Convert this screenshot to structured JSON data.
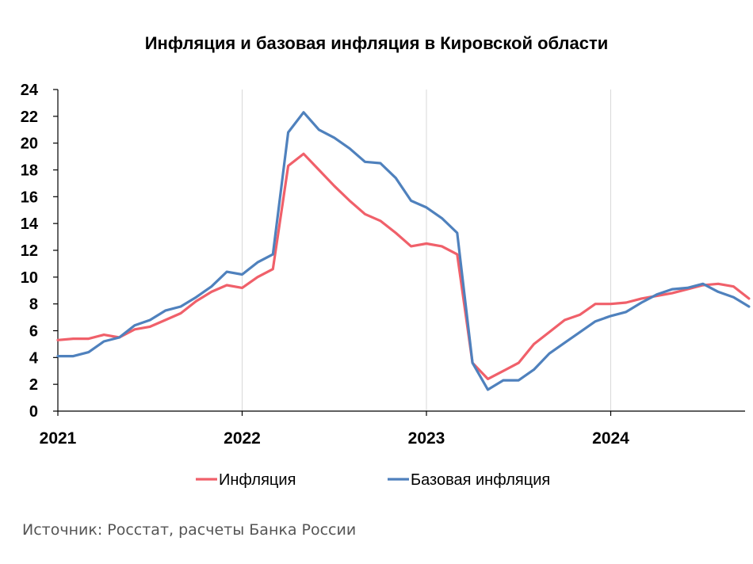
{
  "chart_data": {
    "type": "line",
    "title": "Инфляция и базовая инфляция в Кировской области",
    "xlabel": "",
    "ylabel": "",
    "ylim": [
      0,
      24
    ],
    "yticks": [
      0,
      2,
      4,
      6,
      8,
      10,
      12,
      14,
      16,
      18,
      20,
      22,
      24
    ],
    "x_start": "2021-01",
    "x_ticks": [
      "2021",
      "2022",
      "2023",
      "2024"
    ],
    "grid": "vertical at years",
    "legend_position": "bottom",
    "colors": {
      "Инфляция": "#f0606a",
      "Базовая инфляция": "#4f81bd"
    },
    "series": [
      {
        "name": "Инфляция",
        "values": [
          5.3,
          5.4,
          5.4,
          5.7,
          5.5,
          6.1,
          6.3,
          6.8,
          7.3,
          8.2,
          8.9,
          9.4,
          9.2,
          10.0,
          10.6,
          18.3,
          19.2,
          18.0,
          16.8,
          15.7,
          14.7,
          14.2,
          13.3,
          12.3,
          12.5,
          12.3,
          11.7,
          3.6,
          2.4,
          3.0,
          3.6,
          5.0,
          5.9,
          6.8,
          7.2,
          8.0,
          8.0,
          8.1,
          8.4,
          8.6,
          8.8,
          9.1,
          9.4,
          9.5,
          9.3,
          8.4
        ]
      },
      {
        "name": "Базовая инфляция",
        "values": [
          4.1,
          4.1,
          4.4,
          5.2,
          5.5,
          6.4,
          6.8,
          7.5,
          7.8,
          8.5,
          9.3,
          10.4,
          10.2,
          11.1,
          11.7,
          20.8,
          22.3,
          21.0,
          20.4,
          19.6,
          18.6,
          18.5,
          17.4,
          15.7,
          15.2,
          14.4,
          13.3,
          3.6,
          1.6,
          2.3,
          2.3,
          3.1,
          4.3,
          5.1,
          5.9,
          6.7,
          7.1,
          7.4,
          8.1,
          8.7,
          9.1,
          9.2,
          9.5,
          8.9,
          8.5,
          7.8
        ]
      }
    ]
  },
  "source_text": "Источник: Росстат, расчеты Банка России"
}
